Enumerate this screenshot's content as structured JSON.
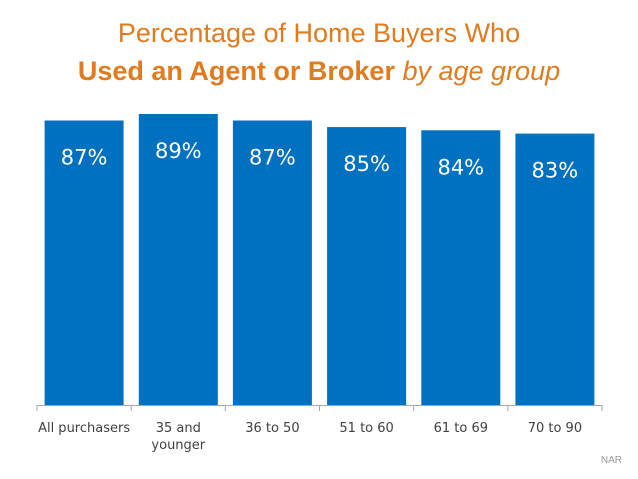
{
  "title": {
    "line1": "Percentage of Home Buyers Who",
    "line2_bold": "Used an Agent or Broker",
    "line2_italic": "by age group"
  },
  "source": "NAR",
  "colors": {
    "bar": "#0070c0",
    "title": "#e07b20",
    "axis": "#a6a6a6",
    "label_text": "#ffffff",
    "tick_text": "#404040"
  },
  "chart_data": {
    "type": "bar",
    "categories": [
      [
        "All purchasers"
      ],
      [
        "35 and",
        "younger"
      ],
      [
        "36 to 50"
      ],
      [
        "51 to 60"
      ],
      [
        "61 to 69"
      ],
      [
        "70 to 90"
      ]
    ],
    "values": [
      87,
      89,
      87,
      85,
      84,
      83
    ],
    "data_labels": [
      "87%",
      "89%",
      "87%",
      "85%",
      "84%",
      "83%"
    ],
    "unit": "%",
    "ylim": [
      0,
      89
    ],
    "grid": false,
    "legend": "none"
  }
}
